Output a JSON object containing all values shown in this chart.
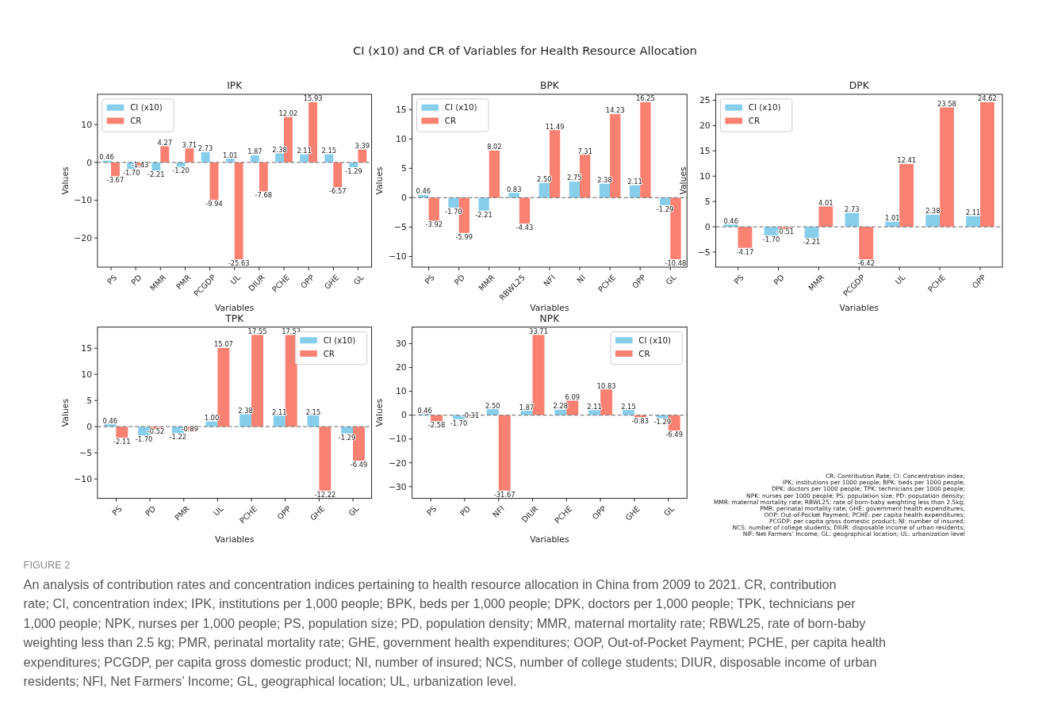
{
  "chart_data": [
    {
      "type": "bar",
      "title": "IPK",
      "xlabel": "Variables",
      "ylabel": "Values",
      "categories": [
        "PS",
        "PD",
        "MMR",
        "PMR",
        "PCGDP",
        "UL",
        "DIUR",
        "PCHE",
        "OPP",
        "GHE",
        "GL"
      ],
      "ylim": [
        -27.71,
        18.01
      ],
      "yticks": [
        -20,
        -10,
        0,
        10
      ],
      "legend": "top left",
      "ref_lines": [
        {
          "axis": "y",
          "value": 0,
          "color": "#808080",
          "line_style": "dashed"
        }
      ],
      "series": [
        {
          "name": "CI (x10)",
          "color": "#87ceeb",
          "values": [
            0.46,
            -1.7,
            -2.21,
            -1.2,
            2.73,
            1.01,
            1.87,
            2.38,
            2.11,
            2.15,
            -1.29
          ],
          "value_labels": [
            "0.46",
            "-1.70",
            "-2.21",
            "-1.20",
            "2.73",
            "1.01",
            "1.87",
            "2.38",
            "2.11",
            "2.15",
            "-1.29"
          ]
        },
        {
          "name": "CR",
          "color": "#fa8072",
          "values": [
            -3.67,
            -1.43,
            4.27,
            3.71,
            -9.94,
            -25.63,
            -7.68,
            12.02,
            15.93,
            -6.57,
            3.39
          ],
          "value_labels": [
            "-3.67",
            "-1.43",
            "4.27",
            "3.71",
            "-9.94",
            "-25.63",
            "-7.68",
            "12.02",
            "15.93",
            "-6.57",
            "3.39"
          ]
        }
      ]
    },
    {
      "type": "bar",
      "title": "BPK",
      "xlabel": "Variables",
      "ylabel": "Values",
      "categories": [
        "PS",
        "PD",
        "MMR",
        "RBWL25",
        "NFI",
        "NI",
        "PCHE",
        "OPP",
        "GL"
      ],
      "ylim": [
        -11.82,
        17.59
      ],
      "yticks": [
        -10,
        -5,
        0,
        5,
        10,
        15
      ],
      "legend": "top left",
      "ref_lines": [
        {
          "axis": "y",
          "value": 0,
          "color": "#808080",
          "line_style": "dashed"
        }
      ],
      "series": [
        {
          "name": "CI (x10)",
          "color": "#87ceeb",
          "values": [
            0.46,
            -1.7,
            -2.21,
            0.83,
            2.5,
            2.75,
            2.38,
            2.11,
            -1.29
          ],
          "value_labels": [
            "0.46",
            "-1.70",
            "-2.21",
            "0.83",
            "2.50",
            "2.75",
            "2.38",
            "2.11",
            "-1.29"
          ]
        },
        {
          "name": "CR",
          "color": "#fa8072",
          "values": [
            -3.92,
            -5.99,
            8.02,
            -4.43,
            11.49,
            7.31,
            14.23,
            16.25,
            -10.48
          ],
          "value_labels": [
            "-3.92",
            "-5.99",
            "8.02",
            "-4.43",
            "11.49",
            "7.31",
            "14.23",
            "16.25",
            "-10.48"
          ]
        }
      ]
    },
    {
      "type": "bar",
      "title": "DPK",
      "xlabel": "Variables",
      "ylabel": "Values",
      "categories": [
        "PS",
        "PD",
        "MMR",
        "PCGDP",
        "UL",
        "PCHE",
        "OPP"
      ],
      "ylim": [
        -7.97,
        26.17
      ],
      "yticks": [
        -5,
        0,
        5,
        10,
        15,
        20,
        25
      ],
      "legend": "top left",
      "ref_lines": [
        {
          "axis": "y",
          "value": 0,
          "color": "#808080",
          "line_style": "dashed"
        }
      ],
      "series": [
        {
          "name": "CI (x10)",
          "color": "#87ceeb",
          "values": [
            0.46,
            -1.7,
            -2.21,
            2.73,
            1.01,
            2.38,
            2.11
          ],
          "value_labels": [
            "0.46",
            "-1.70",
            "-2.21",
            "2.73",
            "1.01",
            "2.38",
            "2.11"
          ]
        },
        {
          "name": "CR",
          "color": "#fa8072",
          "values": [
            -4.17,
            -0.51,
            4.01,
            -6.42,
            12.41,
            23.58,
            24.62
          ],
          "value_labels": [
            "-4.17",
            "-0.51",
            "4.01",
            "-6.42",
            "12.41",
            "23.58",
            "24.62"
          ]
        }
      ]
    },
    {
      "type": "bar",
      "title": "TPK",
      "xlabel": "Variables",
      "ylabel": "Values",
      "categories": [
        "PS",
        "PD",
        "PMR",
        "UL",
        "PCHE",
        "OPP",
        "GHE",
        "GL"
      ],
      "ylim": [
        -13.71,
        19.04
      ],
      "yticks": [
        -10,
        -5,
        0,
        5,
        10,
        15
      ],
      "legend": "top right",
      "ref_lines": [
        {
          "axis": "y",
          "value": 0,
          "color": "#808080",
          "line_style": "dashed"
        }
      ],
      "series": [
        {
          "name": "CI (x10)",
          "color": "#87ceeb",
          "values": [
            0.46,
            -1.7,
            -1.22,
            1.0,
            2.38,
            2.11,
            2.15,
            -1.29
          ],
          "value_labels": [
            "0.46",
            "-1.70",
            "-1.22",
            "1.00",
            "2.38",
            "2.11",
            "2.15",
            "-1.29"
          ]
        },
        {
          "name": "CR",
          "color": "#fa8072",
          "values": [
            -2.11,
            -0.52,
            -0.89,
            15.07,
            17.55,
            17.53,
            -12.22,
            -6.49
          ],
          "value_labels": [
            "-2.11",
            "-0.52",
            "-0.89",
            "15.07",
            "17.55",
            "17.53",
            "-12.22",
            "-6.49"
          ]
        }
      ]
    },
    {
      "type": "bar",
      "title": "NPK",
      "xlabel": "Variables",
      "ylabel": "Values",
      "categories": [
        "PS",
        "PD",
        "NFI",
        "DIUR",
        "PCHE",
        "OPP",
        "GHE",
        "GL"
      ],
      "ylim": [
        -34.94,
        36.98
      ],
      "yticks": [
        -30,
        -20,
        -10,
        0,
        10,
        20,
        30
      ],
      "legend": "top right",
      "ref_lines": [
        {
          "axis": "y",
          "value": 0,
          "color": "#808080",
          "line_style": "dashed"
        }
      ],
      "series": [
        {
          "name": "CI (x10)",
          "color": "#87ceeb",
          "values": [
            0.46,
            -1.7,
            2.5,
            1.87,
            2.28,
            2.11,
            2.15,
            -1.29
          ],
          "value_labels": [
            "0.46",
            "-1.70",
            "2.50",
            "1.87",
            "2.28",
            "2.11",
            "2.15",
            "-1.29"
          ]
        },
        {
          "name": "CR",
          "color": "#fa8072",
          "values": [
            -2.58,
            -0.31,
            -31.67,
            33.71,
            6.09,
            10.83,
            -0.83,
            -6.49
          ],
          "value_labels": [
            "-2.58",
            "-0.31",
            "-31.67",
            "33.71",
            "6.09",
            "10.83",
            "-0.83",
            "-6.49"
          ]
        }
      ]
    },
    {
      "type": "other",
      "title": "CI (x10) and CR of Variables for Health Resource Allocation",
      "annotations": [
        "CR: Contribution Rate; CI: Concentration index;",
        "IPK: institutions per 1000 people; BPK: beds per 1000 people;",
        "DPK: doctors per 1000 people; TPK: technicians per 1000 people;",
        "NPK: nurses per 1000 people; PS: population size; PD: population density;",
        "MMR: maternal mortality rate; RBWL25: rate of born-baby weighting less than 2.5kg;",
        "PMR: perinatal mortality rate; GHE: government health expenditures;",
        "OOP: Out-of-Pocket Payment; PCHE: per capita health expenditures;",
        "PCGDP: per capita gross domestic product; NI: number of insured;",
        "NCS: number of college students; DIUR: disposable income of urban residents;",
        "NIF: Net Farmers’ Income; GL: geographical location; UL: urbanization level",
        "FIGURE 2",
        "An analysis of contribution rates and concentration indices pertaining to health resource allocation in China from 2009 to 2021. CR, contribution rate; CI, concentration index; IPK, institutions per 1,000 people; BPK, beds per 1,000 people; DPK, doctors per 1,000 people; TPK, technicians per 1,000 people; NPK, nurses per 1,000 people; PS, population size; PD, population density; MMR, maternal mortality rate; RBWL25, rate of born-baby weighting less than 2.5 kg; PMR, perinatal mortality rate; GHE, government health expenditures; OOP, Out-of-Pocket Payment; PCHE, per capita health expenditures; PCGDP, per capita gross domestic product; NI, number of insured; NCS, number of college students; DIUR, disposable income of urban residents; NFI, Net Farmers’ Income; GL, geographical location; UL, urbanization level."
      ]
    }
  ]
}
